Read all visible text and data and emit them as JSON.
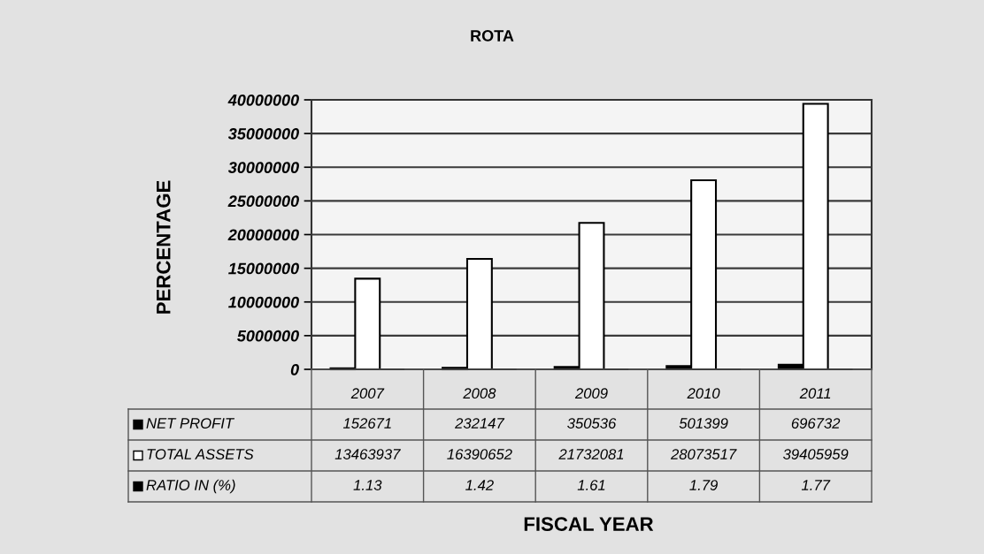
{
  "chart_data": {
    "type": "bar",
    "title": "ROTA",
    "ylabel": "PERCENTAGE",
    "annotations": [
      "FISCAL YEAR"
    ],
    "categories": [
      "2007",
      "2008",
      "2009",
      "2010",
      "2011"
    ],
    "series": [
      {
        "name": "NET PROFIT",
        "color": "#000000",
        "values": [
          152671,
          232147,
          350536,
          501399,
          696732
        ]
      },
      {
        "name": "TOTAL ASSETS",
        "color": "#ffffff",
        "values": [
          13463937,
          16390652,
          21732081,
          28073517,
          39405959
        ]
      },
      {
        "name": "RATIO IN (%)",
        "color": "#000000",
        "values": [
          1.13,
          1.42,
          1.61,
          1.79,
          1.77
        ]
      }
    ],
    "ylim": [
      0,
      40000000
    ],
    "yticks": [
      0,
      5000000,
      10000000,
      15000000,
      20000000,
      25000000,
      30000000,
      35000000,
      40000000
    ],
    "grid": "y",
    "legend": "bottom",
    "data_labels": true
  }
}
